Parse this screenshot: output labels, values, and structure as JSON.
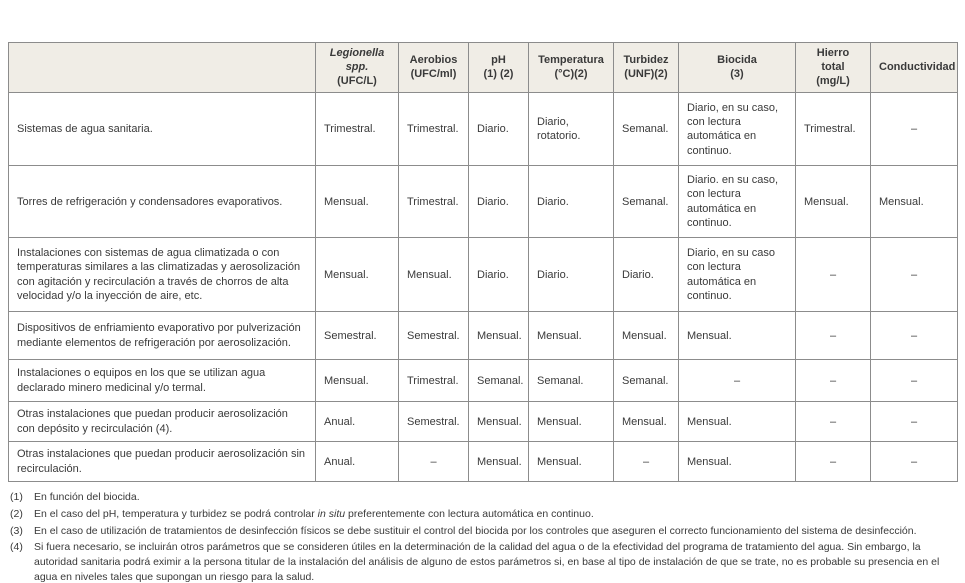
{
  "colors": {
    "header_bg": "#f0ede6",
    "border": "#8c8c8c",
    "text": "#3a3a3a"
  },
  "table": {
    "headers": [
      {
        "id": "col-header-installation",
        "lines": []
      },
      {
        "id": "col-header-legionella",
        "lines": [
          {
            "t": "Legionella",
            "i": true
          },
          {
            "t": "spp.",
            "i": true
          },
          {
            "t": "(UFC/L)",
            "i": false
          }
        ]
      },
      {
        "id": "col-header-aerobios",
        "lines": [
          {
            "t": "Aerobios",
            "i": false
          },
          {
            "t": "(UFC/ml)",
            "i": false
          }
        ]
      },
      {
        "id": "col-header-ph",
        "lines": [
          {
            "t": "pH",
            "i": false
          },
          {
            "t": "(1) (2)",
            "i": false
          }
        ]
      },
      {
        "id": "col-header-temperatura",
        "lines": [
          {
            "t": "Temperatura",
            "i": false
          },
          {
            "t": "(°C)(2)",
            "i": false
          }
        ]
      },
      {
        "id": "col-header-turbidez",
        "lines": [
          {
            "t": "Turbidez",
            "i": false
          },
          {
            "t": "(UNF)(2)",
            "i": false
          }
        ]
      },
      {
        "id": "col-header-biocida",
        "lines": [
          {
            "t": "Biocida",
            "i": false
          },
          {
            "t": "(3)",
            "i": false
          }
        ]
      },
      {
        "id": "col-header-hierro-total",
        "lines": [
          {
            "t": "Hierro",
            "i": false
          },
          {
            "t": "total",
            "i": false
          },
          {
            "t": "(mg/L)",
            "i": false
          }
        ]
      },
      {
        "id": "col-header-conductividad",
        "lines": [
          {
            "t": "Conductividad",
            "i": false
          }
        ]
      }
    ],
    "rows": [
      {
        "label": "Sistemas de agua sanitaria.",
        "cells": [
          "Trimestral.",
          "Trimestral.",
          "Diario.",
          "Diario, rotatorio.",
          "Semanal.",
          "Diario, en su caso, con lectura automática en continuo.",
          "Trimestral.",
          "–"
        ]
      },
      {
        "label": "Torres de refrigeración y condensadores evaporativos.",
        "cells": [
          "Mensual.",
          "Trimestral.",
          "Diario.",
          "Diario.",
          "Semanal.",
          "Diario. en su caso, con lectura automática en continuo.",
          "Mensual.",
          "Mensual."
        ]
      },
      {
        "label": "Instalaciones con sistemas de agua climatizada o con temperaturas similares a las climatizadas y aerosolización con agitación y recirculación a través de chorros de alta velocidad y/o la inyección de aire, etc.",
        "cells": [
          "Mensual.",
          "Mensual.",
          "Diario.",
          "Diario.",
          "Diario.",
          "Diario, en su caso con lectura automática en continuo.",
          "–",
          "–"
        ]
      },
      {
        "label": "Dispositivos de enfriamiento evaporativo por pulverización mediante elementos de refrigeración por aerosolización.",
        "cells": [
          "Semestral.",
          "Semestral.",
          "Mensual.",
          "Mensual.",
          "Mensual.",
          "Mensual.",
          "–",
          "–"
        ]
      },
      {
        "label": "Instalaciones o equipos en los que se utilizan agua declarado minero medicinal y/o termal.",
        "cells": [
          "Mensual.",
          "Trimestral.",
          "Semanal.",
          "Semanal.",
          "Semanal.",
          "–",
          "–",
          "–"
        ]
      },
      {
        "label": "Otras instalaciones que puedan producir aerosolización con depósito y recirculación (4).",
        "cells": [
          "Anual.",
          "Semestral.",
          "Mensual.",
          "Mensual.",
          "Mensual.",
          "Mensual.",
          "–",
          "–"
        ]
      },
      {
        "label": "Otras instalaciones que puedan producir aerosolización sin recirculación.",
        "cells": [
          "Anual.",
          "–",
          "Mensual.",
          "Mensual.",
          "–",
          "Mensual.",
          "–",
          "–"
        ]
      }
    ]
  },
  "footnotes": [
    {
      "marker": "(1)",
      "parts": [
        {
          "t": "En función del biocida.",
          "i": false
        }
      ]
    },
    {
      "marker": "(2)",
      "parts": [
        {
          "t": "En el caso del pH, temperatura y turbidez se podrá controlar ",
          "i": false
        },
        {
          "t": "in situ",
          "i": true
        },
        {
          "t": " preferentemente con lectura automática en continuo.",
          "i": false
        }
      ]
    },
    {
      "marker": "(3)",
      "parts": [
        {
          "t": "En el caso de utilización de tratamientos de desinfección físicos se debe sustituir el control del biocida por los controles que aseguren el correcto funcionamiento del sistema de desinfección.",
          "i": false
        }
      ]
    },
    {
      "marker": "(4)",
      "parts": [
        {
          "t": "Si fuera necesario, se incluirán otros parámetros que se consideren útiles en la determinación de la calidad del agua o de la efectividad del programa de tratamiento del agua. Sin embargo, la autoridad sanitaria podrá eximir a la persona titular de la instalación del análisis de alguno de estos parámetros si, en base al tipo de instalación de que se trate, no es probable su presencia en el agua en niveles tales que supongan un riesgo para la salud.",
          "i": false
        }
      ]
    }
  ]
}
